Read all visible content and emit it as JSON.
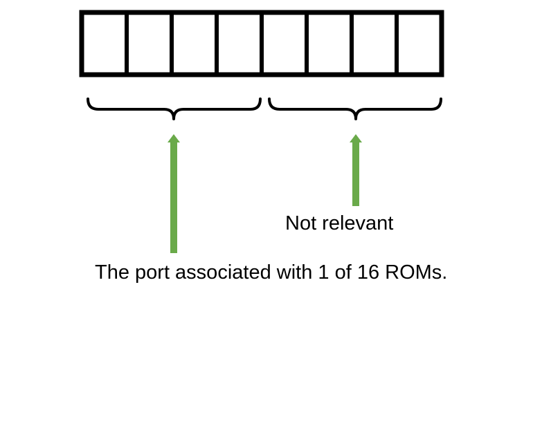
{
  "diagram": {
    "register": {
      "cell_count": 8,
      "border_color": "#000000",
      "fill_color": "#ffffff"
    },
    "braces": {
      "left_group_cells": 4,
      "right_group_cells": 4,
      "color": "#000000"
    },
    "arrows": {
      "color": "#6aaa4a"
    },
    "labels": {
      "right_group": "Not relevant",
      "left_group": "The port associated with 1 of 16 ROMs."
    }
  }
}
